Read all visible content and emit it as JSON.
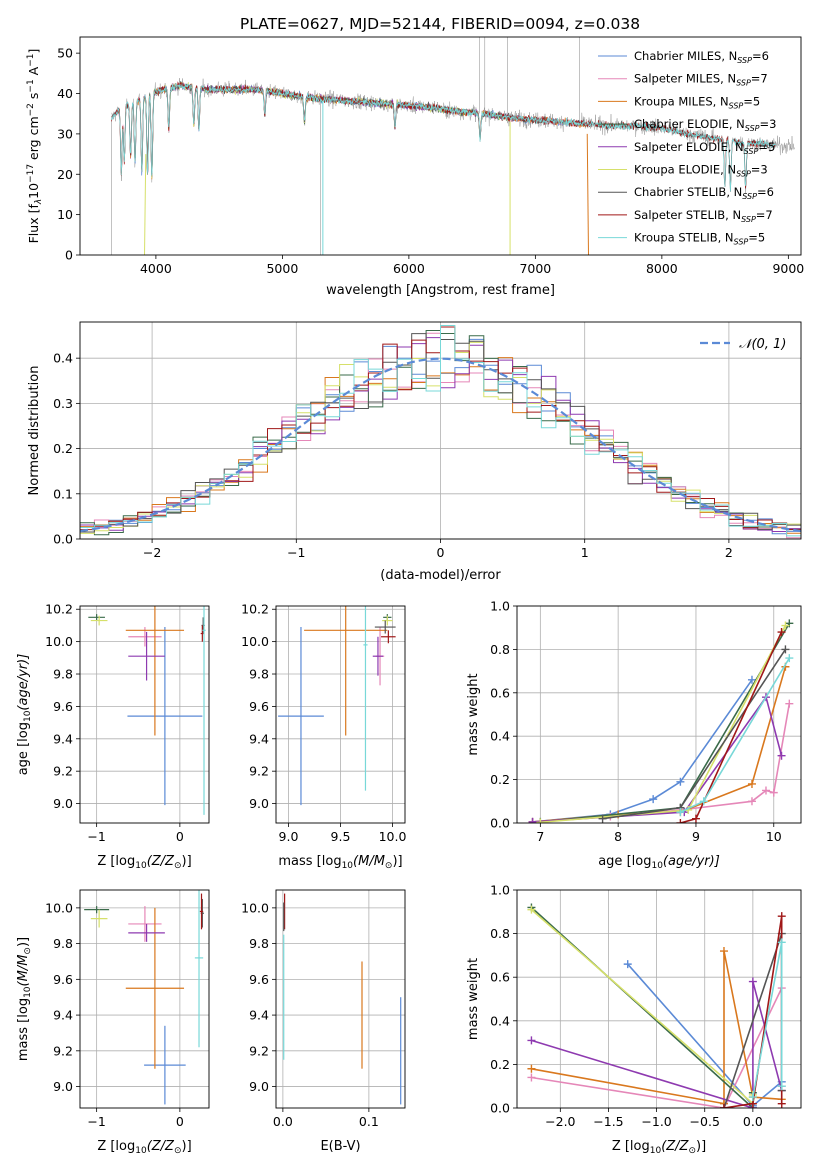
{
  "figure_title": "PLATE=0627, MJD=52144, FIBERID=0094, z=0.038",
  "colors": {
    "chabrier_miles": "#5b8ad6",
    "salpeter_miles": "#e587b8",
    "kroupa_miles": "#d9781e",
    "chabrier_elodie": "#3a6b4a",
    "salpeter_elodie": "#8e3ab0",
    "kroupa_elodie": "#d6e06a",
    "chabrier_stelib": "#555555",
    "salpeter_stelib": "#a01818",
    "kroupa_stelib": "#78d8d8",
    "normal_curve": "#5b8ad6"
  },
  "chart_data": [
    {
      "id": "spectrum",
      "type": "line",
      "title": "PLATE=0627, MJD=52144, FIBERID=0094, z=0.038",
      "xlabel": "wavelength [Angstrom, rest frame]",
      "ylabel_parts": [
        "Flux [f",
        "λ",
        "10",
        "−17",
        " erg cm",
        "−2",
        " s",
        "−1",
        " A",
        "−1",
        "]"
      ],
      "xlim": [
        3400,
        9100
      ],
      "ylim": [
        0,
        54
      ],
      "xticks": [
        4000,
        5000,
        6000,
        7000,
        8000,
        9000
      ],
      "yticks": [
        0,
        10,
        20,
        30,
        40,
        50
      ],
      "grid": false,
      "legend_position": "top-right",
      "legend": [
        {
          "label": "Chabrier MILES, N",
          "sub": "SSP",
          "value": "=6",
          "color_key": "chabrier_miles"
        },
        {
          "label": "Salpeter MILES, N",
          "sub": "SSP",
          "value": "=7",
          "color_key": "salpeter_miles"
        },
        {
          "label": "Kroupa MILES, N",
          "sub": "SSP",
          "value": "=5",
          "color_key": "kroupa_miles"
        },
        {
          "label": "Chabrier ELODIE, N",
          "sub": "SSP",
          "value": "=3",
          "color_key": "chabrier_elodie"
        },
        {
          "label": "Salpeter ELODIE, N",
          "sub": "SSP",
          "value": "=5",
          "color_key": "salpeter_elodie"
        },
        {
          "label": "Kroupa ELODIE, N",
          "sub": "SSP",
          "value": "=3",
          "color_key": "kroupa_elodie"
        },
        {
          "label": "Chabrier STELIB, N",
          "sub": "SSP",
          "value": "=6",
          "color_key": "chabrier_stelib"
        },
        {
          "label": "Salpeter STELIB, N",
          "sub": "SSP",
          "value": "=7",
          "color_key": "salpeter_stelib"
        },
        {
          "label": "Kroupa STELIB, N",
          "sub": "SSP",
          "value": "=5",
          "color_key": "kroupa_stelib"
        }
      ],
      "continuum": [
        [
          3650,
          34
        ],
        [
          3750,
          37
        ],
        [
          3850,
          38
        ],
        [
          3950,
          40
        ],
        [
          4050,
          41
        ],
        [
          4200,
          42
        ],
        [
          4400,
          41
        ],
        [
          4600,
          41
        ],
        [
          4800,
          41
        ],
        [
          5000,
          40
        ],
        [
          5200,
          39
        ],
        [
          5400,
          38.5
        ],
        [
          5600,
          38
        ],
        [
          5800,
          37.5
        ],
        [
          6000,
          37
        ],
        [
          6200,
          36.5
        ],
        [
          6400,
          35.5
        ],
        [
          6600,
          35
        ],
        [
          6800,
          34
        ],
        [
          7000,
          33.5
        ],
        [
          7200,
          33
        ],
        [
          7400,
          32.5
        ],
        [
          7600,
          32
        ],
        [
          7800,
          32
        ],
        [
          8000,
          31.5
        ],
        [
          8200,
          30
        ],
        [
          8400,
          29
        ],
        [
          8600,
          28
        ],
        [
          8800,
          27.5
        ],
        [
          9000,
          27
        ]
      ],
      "absorption_lines": [
        [
          3727,
          22
        ],
        [
          3750,
          25
        ],
        [
          3800,
          26
        ],
        [
          3835,
          24
        ],
        [
          3889,
          21
        ],
        [
          3934,
          20
        ],
        [
          3968,
          19
        ],
        [
          4102,
          30
        ],
        [
          4300,
          31
        ],
        [
          4340,
          30
        ],
        [
          4861,
          34
        ],
        [
          5175,
          34
        ],
        [
          5890,
          34
        ],
        [
          6563,
          33
        ],
        [
          8498,
          24
        ],
        [
          8542,
          23
        ],
        [
          8662,
          24
        ]
      ],
      "model_ranges": [
        {
          "key": "chabrier_miles",
          "start": 3680,
          "end": 7400
        },
        {
          "key": "salpeter_miles",
          "start": 3680,
          "end": 7400
        },
        {
          "key": "kroupa_miles",
          "start": 3680,
          "end": 7400
        },
        {
          "key": "chabrier_elodie",
          "start": 3900,
          "end": 6800
        },
        {
          "key": "salpeter_elodie",
          "start": 3900,
          "end": 6800
        },
        {
          "key": "kroupa_elodie",
          "start": 3900,
          "end": 6800
        },
        {
          "key": "chabrier_stelib",
          "start": 3650,
          "end": 8900
        },
        {
          "key": "salpeter_stelib",
          "start": 3650,
          "end": 8900
        },
        {
          "key": "kroupa_stelib",
          "start": 3650,
          "end": 8900
        }
      ]
    },
    {
      "id": "residuals",
      "type": "histogram",
      "xlabel": "(data-model)/error",
      "ylabel": "Normed distribution",
      "xlim": [
        -2.5,
        2.5
      ],
      "ylim": [
        0,
        0.48
      ],
      "xticks": [
        -2,
        -1,
        0,
        1,
        2
      ],
      "yticks": [
        0.0,
        0.1,
        0.2,
        0.3,
        0.4
      ],
      "grid": true,
      "legend_position": "top-right",
      "legend": [
        {
          "label": "𝒩(0, 1)",
          "color_key": "normal_curve",
          "style": "dashed"
        }
      ],
      "bin_width": 0.1,
      "curve": {
        "name": "𝒩(0, 1)",
        "mean": 0,
        "std": 1
      }
    },
    {
      "id": "age_vs_Z",
      "type": "errorbar",
      "xlabel_parts": [
        "Z [log",
        "10",
        "(Z/Z",
        "⊙",
        ")]"
      ],
      "ylabel_parts": [
        "age  [log",
        "10",
        "(age/yr)]"
      ],
      "xlim": [
        -1.2,
        0.35
      ],
      "ylim": [
        8.88,
        10.22
      ],
      "xticks": [
        -1,
        0
      ],
      "yticks": [
        9.0,
        9.2,
        9.4,
        9.6,
        9.8,
        10.0,
        10.2
      ],
      "grid": true,
      "points": [
        {
          "key": "chabrier_miles",
          "x": -0.18,
          "xerr": 0.45,
          "y": 9.54,
          "yerr": 0.55
        },
        {
          "key": "salpeter_miles",
          "x": -0.42,
          "xerr": 0.2,
          "y": 10.03,
          "yerr": 0.06
        },
        {
          "key": "kroupa_miles",
          "x": -0.3,
          "xerr": 0.35,
          "y": 10.07,
          "yerr": 0.65
        },
        {
          "key": "chabrier_elodie",
          "x": -1.0,
          "xerr": 0.1,
          "y": 10.15,
          "yerr": 0.02
        },
        {
          "key": "salpeter_elodie",
          "x": -0.4,
          "xerr": 0.22,
          "y": 9.91,
          "yerr": 0.15
        },
        {
          "key": "kroupa_elodie",
          "x": -0.97,
          "xerr": 0.1,
          "y": 10.13,
          "yerr": 0.03
        },
        {
          "key": "chabrier_stelib",
          "x": 0.28,
          "xerr": 0.02,
          "y": 10.1,
          "yerr": 0.05
        },
        {
          "key": "salpeter_stelib",
          "x": 0.27,
          "xerr": 0.02,
          "y": 10.05,
          "yerr": 0.05
        },
        {
          "key": "kroupa_stelib",
          "x": 0.29,
          "xerr": 0.02,
          "y": 10.07,
          "yerr": 1.14
        }
      ]
    },
    {
      "id": "age_vs_mass",
      "type": "errorbar",
      "xlabel_parts": [
        "mass [log",
        "10",
        "(M/M",
        "⊙",
        ")]"
      ],
      "ylabel": "",
      "xlim": [
        8.88,
        10.12
      ],
      "ylim": [
        8.88,
        10.22
      ],
      "xticks": [
        9.0,
        9.5,
        10.0
      ],
      "yticks": [
        9.0,
        9.2,
        9.4,
        9.6,
        9.8,
        10.0,
        10.2
      ],
      "grid": true,
      "points": [
        {
          "key": "chabrier_miles",
          "x": 9.12,
          "xerr": 0.22,
          "y": 9.54,
          "yerr": 0.55
        },
        {
          "key": "salpeter_miles",
          "x": 9.88,
          "xerr": 0.04,
          "y": 9.91,
          "yerr": 0.18
        },
        {
          "key": "kroupa_miles",
          "x": 9.55,
          "xerr": 0.4,
          "y": 10.07,
          "yerr": 0.65
        },
        {
          "key": "chabrier_elodie",
          "x": 9.95,
          "xerr": 0.04,
          "y": 10.15,
          "yerr": 0.02
        },
        {
          "key": "salpeter_elodie",
          "x": 9.86,
          "xerr": 0.05,
          "y": 9.91,
          "yerr": 0.12
        },
        {
          "key": "kroupa_elodie",
          "x": 9.95,
          "xerr": 0.05,
          "y": 10.13,
          "yerr": 0.03
        },
        {
          "key": "chabrier_stelib",
          "x": 9.93,
          "xerr": 0.1,
          "y": 10.09,
          "yerr": 0.04
        },
        {
          "key": "salpeter_stelib",
          "x": 9.96,
          "xerr": 0.07,
          "y": 10.03,
          "yerr": 0.04
        },
        {
          "key": "kroupa_stelib",
          "x": 9.74,
          "xerr": 0.02,
          "y": 9.98,
          "yerr": 0.9
        }
      ]
    },
    {
      "id": "weight_vs_age",
      "type": "line",
      "xlabel_parts": [
        "age  [log",
        "10",
        "(age/yr)]"
      ],
      "ylabel": "mass weight",
      "xlim": [
        6.7,
        10.35
      ],
      "ylim": [
        0,
        1.0
      ],
      "xticks": [
        7,
        8,
        9,
        10
      ],
      "yticks": [
        0.0,
        0.2,
        0.4,
        0.6,
        0.8,
        1.0
      ],
      "grid": true,
      "series": [
        {
          "key": "chabrier_miles",
          "x": [
            6.9,
            7.9,
            8.45,
            8.8,
            9.72
          ],
          "y": [
            0.005,
            0.04,
            0.11,
            0.19,
            0.66
          ]
        },
        {
          "key": "salpeter_miles",
          "x": [
            6.9,
            7.9,
            8.8,
            9.72,
            9.9,
            10.0,
            10.2
          ],
          "y": [
            0.003,
            0.03,
            0.06,
            0.1,
            0.15,
            0.14,
            0.55
          ]
        },
        {
          "key": "kroupa_miles",
          "x": [
            6.9,
            8.0,
            8.8,
            9.72,
            10.15
          ],
          "y": [
            0.005,
            0.04,
            0.05,
            0.18,
            0.72
          ]
        },
        {
          "key": "chabrier_elodie",
          "x": [
            7.0,
            8.8,
            10.2
          ],
          "y": [
            0.005,
            0.07,
            0.92
          ]
        },
        {
          "key": "salpeter_elodie",
          "x": [
            6.9,
            8.85,
            9.9,
            10.1
          ],
          "y": [
            0.005,
            0.05,
            0.58,
            0.31
          ]
        },
        {
          "key": "kroupa_elodie",
          "x": [
            7.0,
            8.9,
            10.15
          ],
          "y": [
            0.003,
            0.06,
            0.91
          ]
        },
        {
          "key": "chabrier_stelib",
          "x": [
            7.8,
            8.8,
            10.15
          ],
          "y": [
            0.02,
            0.07,
            0.8
          ]
        },
        {
          "key": "salpeter_stelib",
          "x": [
            8.8,
            9.0,
            10.1
          ],
          "y": [
            0.0,
            0.02,
            0.88
          ]
        },
        {
          "key": "kroupa_stelib",
          "x": [
            8.8,
            9.1,
            10.2
          ],
          "y": [
            0.05,
            0.1,
            0.76
          ]
        }
      ]
    },
    {
      "id": "mass_vs_Z",
      "type": "errorbar",
      "xlabel_parts": [
        "Z [log",
        "10",
        "(Z/Z",
        "⊙",
        ")]"
      ],
      "ylabel_parts": [
        "mass [log",
        "10",
        "(M/M",
        "⊙",
        ")]"
      ],
      "xlim": [
        -1.2,
        0.35
      ],
      "ylim": [
        8.88,
        10.1
      ],
      "xticks": [
        -1,
        0
      ],
      "yticks": [
        9.0,
        9.2,
        9.4,
        9.6,
        9.8,
        10.0
      ],
      "grid": true,
      "points": [
        {
          "key": "chabrier_miles",
          "x": -0.18,
          "xerr": 0.25,
          "y": 9.12,
          "yerr": 0.22
        },
        {
          "key": "salpeter_miles",
          "x": -0.42,
          "xerr": 0.2,
          "y": 9.91,
          "yerr": 0.1
        },
        {
          "key": "kroupa_miles",
          "x": -0.3,
          "xerr": 0.35,
          "y": 9.55,
          "yerr": 0.45
        },
        {
          "key": "chabrier_elodie",
          "x": -1.0,
          "xerr": 0.15,
          "y": 9.99,
          "yerr": 0.02
        },
        {
          "key": "salpeter_elodie",
          "x": -0.4,
          "xerr": 0.22,
          "y": 9.86,
          "yerr": 0.05
        },
        {
          "key": "kroupa_elodie",
          "x": -0.97,
          "xerr": 0.1,
          "y": 9.94,
          "yerr": 0.05
        },
        {
          "key": "chabrier_stelib",
          "x": 0.27,
          "xerr": 0.02,
          "y": 9.97,
          "yerr": 0.08
        },
        {
          "key": "salpeter_stelib",
          "x": 0.26,
          "xerr": 0.02,
          "y": 9.98,
          "yerr": 0.1
        },
        {
          "key": "kroupa_stelib",
          "x": 0.23,
          "xerr": 0.05,
          "y": 9.72,
          "yerr": 0.5
        }
      ]
    },
    {
      "id": "mass_vs_ebv",
      "type": "errorbar",
      "xlabel": "E(B-V)",
      "ylabel": "",
      "xlim": [
        -0.008,
        0.142
      ],
      "ylim": [
        8.88,
        10.1
      ],
      "xticks": [
        0.0,
        0.1
      ],
      "yticks": [
        9.0,
        9.2,
        9.4,
        9.6,
        9.8,
        10.0
      ],
      "grid": true,
      "points": [
        {
          "key": "chabrier_miles",
          "x": 0.137,
          "xerr": 0,
          "y": 9.2,
          "yerr": 0.3
        },
        {
          "key": "kroupa_miles",
          "x": 0.092,
          "xerr": 0,
          "y": 9.4,
          "yerr": 0.3
        },
        {
          "key": "salpeter_stelib",
          "x": 0.002,
          "xerr": 0,
          "y": 9.98,
          "yerr": 0.1
        },
        {
          "key": "chabrier_stelib",
          "x": 0.001,
          "xerr": 0,
          "y": 9.95,
          "yerr": 0.08
        },
        {
          "key": "kroupa_stelib",
          "x": 0.001,
          "xerr": 0,
          "y": 9.5,
          "yerr": 0.35
        }
      ]
    },
    {
      "id": "weight_vs_Z",
      "type": "line",
      "xlabel_parts": [
        "Z [log",
        "10",
        "(Z/Z",
        "⊙",
        ")]"
      ],
      "ylabel": "mass weight",
      "xlim": [
        -2.45,
        0.5
      ],
      "ylim": [
        0,
        1.0
      ],
      "xticks": [
        -2.0,
        -1.5,
        -1.0,
        -0.5,
        0.0
      ],
      "yticks": [
        0.0,
        0.2,
        0.4,
        0.6,
        0.8,
        1.0
      ],
      "grid": true,
      "series": [
        {
          "key": "chabrier_miles",
          "x": [
            -1.3,
            0.0,
            0.3
          ],
          "y": [
            0.66,
            0.01,
            0.12
          ]
        },
        {
          "key": "salpeter_miles",
          "x": [
            -2.3,
            -0.3,
            0.3,
            0.3
          ],
          "y": [
            0.14,
            0.0,
            0.55,
            0.1
          ]
        },
        {
          "key": "kroupa_miles",
          "x": [
            -2.3,
            -0.3,
            -0.3,
            0.0,
            0.3
          ],
          "y": [
            0.18,
            0.02,
            0.72,
            0.05,
            0.04
          ]
        },
        {
          "key": "chabrier_elodie",
          "x": [
            -2.3,
            0.0,
            0.0
          ],
          "y": [
            0.92,
            0.0,
            0.07
          ]
        },
        {
          "key": "salpeter_elodie",
          "x": [
            -2.3,
            0.0,
            0.0,
            0.3
          ],
          "y": [
            0.31,
            0.0,
            0.58,
            0.08
          ]
        },
        {
          "key": "kroupa_elodie",
          "x": [
            -2.3,
            0.0,
            0.0
          ],
          "y": [
            0.91,
            0.02,
            0.06
          ]
        },
        {
          "key": "chabrier_stelib",
          "x": [
            -0.3,
            0.3,
            0.3
          ],
          "y": [
            0.0,
            0.8,
            0.08
          ]
        },
        {
          "key": "salpeter_stelib",
          "x": [
            -0.3,
            0.0,
            0.3,
            0.3
          ],
          "y": [
            0.0,
            0.02,
            0.88,
            0.02
          ]
        },
        {
          "key": "kroupa_stelib",
          "x": [
            0.0,
            0.3,
            0.3
          ],
          "y": [
            0.05,
            0.76,
            0.1
          ]
        }
      ]
    }
  ]
}
